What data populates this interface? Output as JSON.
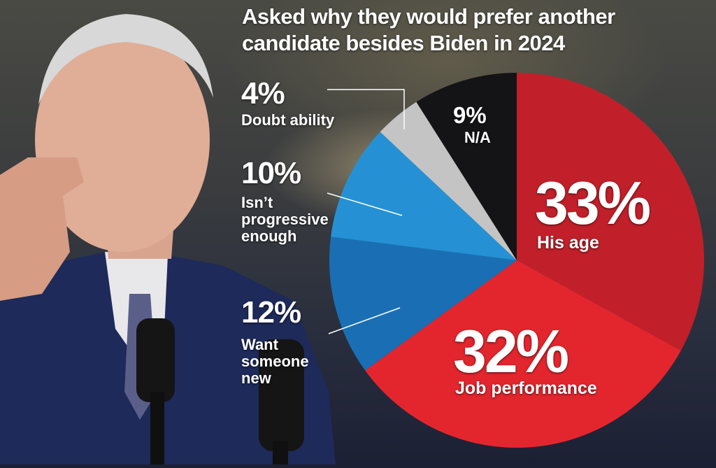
{
  "chart_data": {
    "type": "pie",
    "title": "Asked why they would prefer another candidate besides Biden in 2024",
    "slices": [
      {
        "label": "His age",
        "value": 33,
        "display": "33%",
        "color": "#c1202a"
      },
      {
        "label": "Job performance",
        "value": 32,
        "display": "32%",
        "color": "#e3262e"
      },
      {
        "label": "Want someone new",
        "value": 12,
        "display": "12%",
        "color": "#1a6fb4"
      },
      {
        "label": "Isn’t progressive enough",
        "value": 10,
        "display": "10%",
        "color": "#2591d4"
      },
      {
        "label": "Doubt ability",
        "value": 4,
        "display": "4%",
        "color": "#c4c4c4"
      },
      {
        "label": "N/A",
        "value": 9,
        "display": "9%",
        "color": "#141416"
      }
    ]
  },
  "title_lines": [
    "Asked why they would prefer another",
    "candidate besides Biden in 2024"
  ],
  "labels": {
    "age": {
      "pct": "33%",
      "desc": "His age"
    },
    "job": {
      "pct": "32%",
      "desc": "Job performance"
    },
    "new": {
      "pct": "12%",
      "desc": [
        "Want",
        "someone",
        "new"
      ]
    },
    "prog": {
      "pct": "10%",
      "desc": [
        "Isn’t",
        "progressive",
        "enough"
      ]
    },
    "doubt": {
      "pct": "4%",
      "desc": "Doubt ability"
    },
    "na": {
      "pct": "9%",
      "desc": "N/A"
    }
  }
}
